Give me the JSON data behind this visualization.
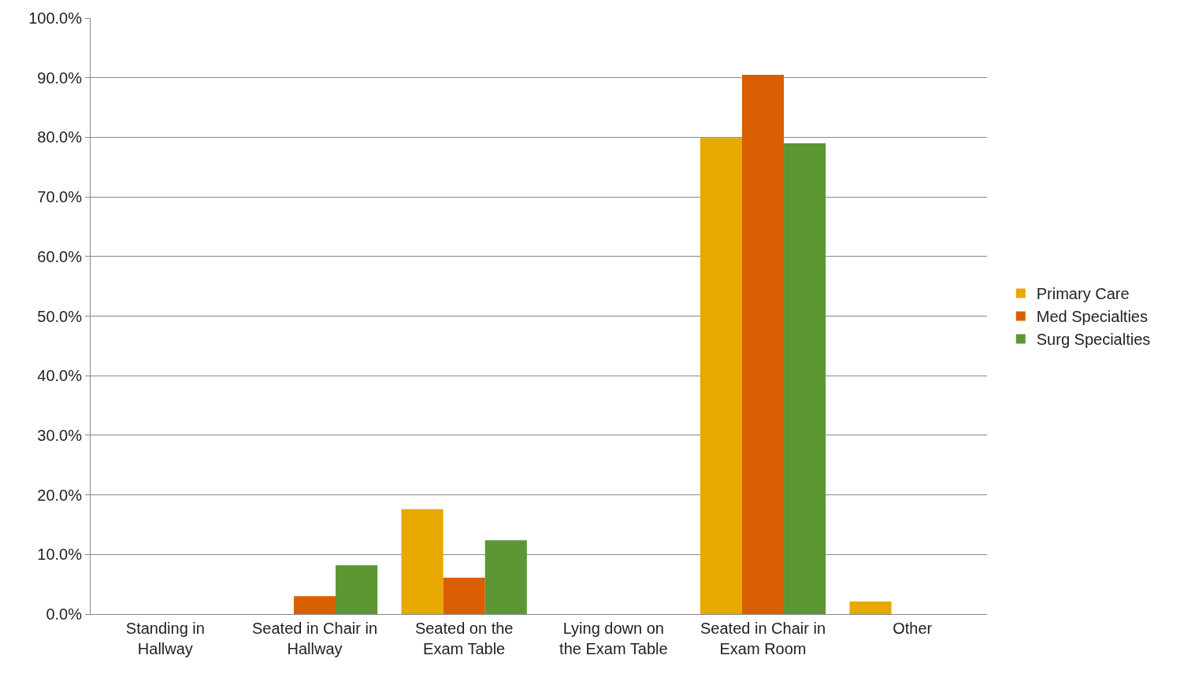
{
  "chart_data": {
    "type": "bar",
    "categories": [
      "Standing in\nHallway",
      "Seated in Chair in\nHallway",
      "Seated on the\nExam Table",
      "Lying down on\nthe Exam Table",
      "Seated in Chair in\nExam Room",
      "Other"
    ],
    "series": [
      {
        "name": "Primary Care",
        "color": "#e8a800",
        "values": [
          0,
          0,
          17.6,
          0,
          79.9,
          2.1
        ]
      },
      {
        "name": "Med Specialties",
        "color": "#d95f02",
        "values": [
          0,
          3.0,
          6.1,
          0,
          90.5,
          0
        ]
      },
      {
        "name": "Surg Specialties",
        "color": "#5c9734",
        "values": [
          0,
          8.2,
          12.4,
          0,
          79.0,
          0
        ]
      }
    ],
    "ylim": [
      0,
      100
    ],
    "yticks": [
      {
        "value": 0,
        "label": "0.0%"
      },
      {
        "value": 10,
        "label": "10.0%"
      },
      {
        "value": 20,
        "label": "20.0%"
      },
      {
        "value": 30,
        "label": "30.0%"
      },
      {
        "value": 40,
        "label": "40.0%"
      },
      {
        "value": 50,
        "label": "50.0%"
      },
      {
        "value": 60,
        "label": "60.0%"
      },
      {
        "value": 70,
        "label": "70.0%"
      },
      {
        "value": 80,
        "label": "80.0%"
      },
      {
        "value": 90,
        "label": "90.0%"
      },
      {
        "value": 100,
        "label": "100.0%"
      }
    ],
    "grid": "y",
    "legend": "right"
  }
}
